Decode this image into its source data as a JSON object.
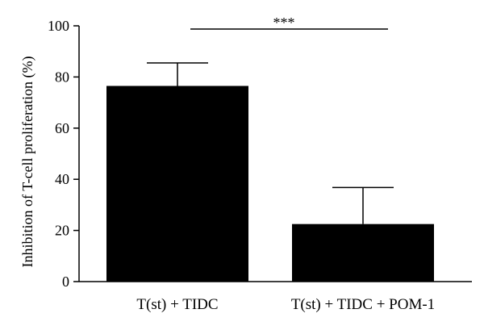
{
  "chart_data": {
    "type": "bar",
    "title": "",
    "xlabel": "",
    "ylabel": "Inhibition of T-cell proliferation (%)",
    "ylim": [
      0,
      100
    ],
    "yticks": [
      0,
      20,
      40,
      60,
      80,
      100
    ],
    "categories": [
      "T(st) + TIDC",
      "T(st) + TIDC + POM-1"
    ],
    "values": [
      76.5,
      22.5
    ],
    "error_upper": [
      85.5,
      36.8
    ],
    "significance": {
      "label": "***",
      "between": [
        0,
        1
      ]
    },
    "bar_color": "#000000",
    "grid": false,
    "legend": "none"
  }
}
